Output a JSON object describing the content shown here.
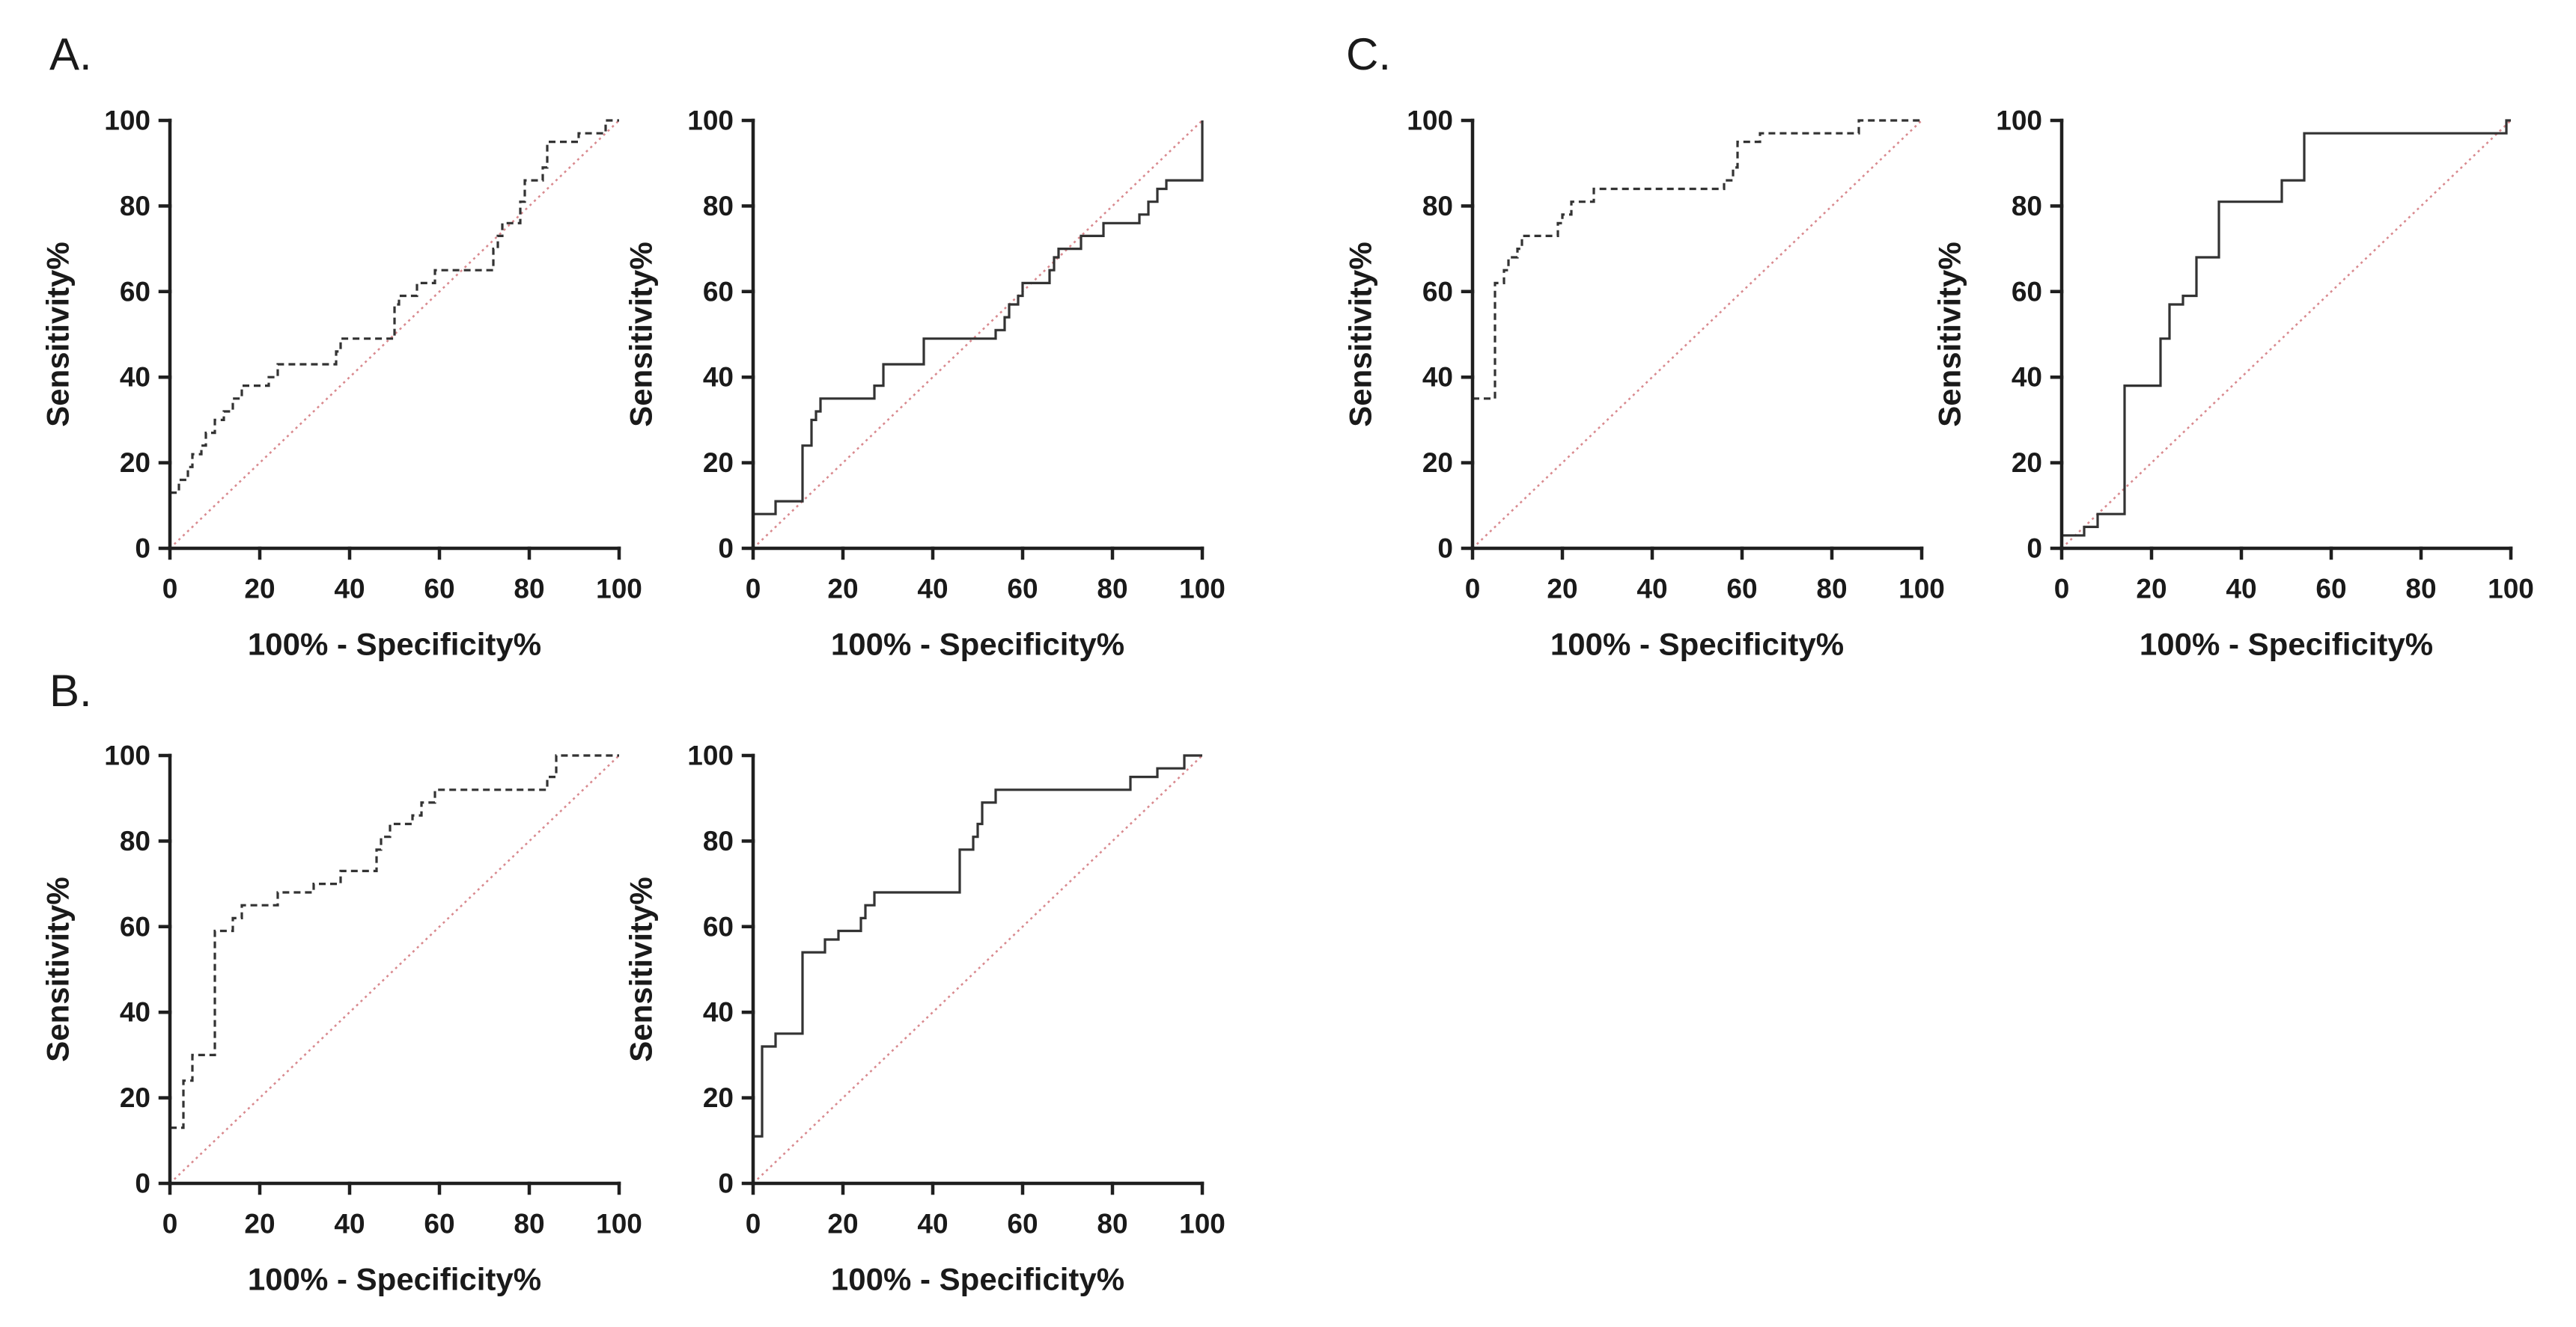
{
  "panels": [
    {
      "label": "A."
    },
    {
      "label": "B."
    },
    {
      "label": "C."
    }
  ],
  "chart_data": [
    {
      "type": "line",
      "xlabel": "100% - Specificity%",
      "ylabel": "Sensitivity%",
      "xlim": [
        0,
        100
      ],
      "ylim": [
        0,
        100
      ],
      "xticks": [
        0,
        20,
        40,
        60,
        80,
        100
      ],
      "yticks": [
        0,
        20,
        40,
        60,
        80,
        100
      ],
      "series": [
        {
          "color": "#333333",
          "dashed": true,
          "points": [
            [
              0,
              13
            ],
            [
              2,
              13
            ],
            [
              2,
              16
            ],
            [
              4,
              16
            ],
            [
              4,
              19
            ],
            [
              5,
              19
            ],
            [
              5,
              22
            ],
            [
              7,
              22
            ],
            [
              7,
              24
            ],
            [
              8,
              24
            ],
            [
              8,
              27
            ],
            [
              10,
              27
            ],
            [
              10,
              30
            ],
            [
              12,
              30
            ],
            [
              12,
              32
            ],
            [
              14,
              32
            ],
            [
              14,
              35
            ],
            [
              16,
              35
            ],
            [
              16,
              38
            ],
            [
              22,
              38
            ],
            [
              22,
              40
            ],
            [
              24,
              40
            ],
            [
              24,
              43
            ],
            [
              37,
              43
            ],
            [
              37,
              46
            ],
            [
              38,
              46
            ],
            [
              38,
              49
            ],
            [
              50,
              49
            ],
            [
              50,
              57
            ],
            [
              51,
              57
            ],
            [
              51,
              59
            ],
            [
              55,
              59
            ],
            [
              55,
              62
            ],
            [
              59,
              62
            ],
            [
              59,
              65
            ],
            [
              72,
              65
            ],
            [
              72,
              70
            ],
            [
              73,
              70
            ],
            [
              73,
              73
            ],
            [
              74,
              73
            ],
            [
              74,
              76
            ],
            [
              78,
              76
            ],
            [
              78,
              81
            ],
            [
              79,
              81
            ],
            [
              79,
              86
            ],
            [
              83,
              86
            ],
            [
              83,
              89
            ],
            [
              84,
              89
            ],
            [
              84,
              95
            ],
            [
              91,
              95
            ],
            [
              91,
              97
            ],
            [
              97,
              97
            ],
            [
              97,
              100
            ],
            [
              100,
              100
            ]
          ]
        }
      ],
      "reference": {
        "color": "#d98a8f",
        "points": [
          [
            0,
            0
          ],
          [
            100,
            100
          ]
        ]
      }
    },
    {
      "type": "line",
      "xlabel": "100% - Specificity%",
      "ylabel": "Sensitivity%",
      "xlim": [
        0,
        100
      ],
      "ylim": [
        0,
        100
      ],
      "xticks": [
        0,
        20,
        40,
        60,
        80,
        100
      ],
      "yticks": [
        0,
        20,
        40,
        60,
        80,
        100
      ],
      "series": [
        {
          "color": "#333333",
          "dashed": false,
          "points": [
            [
              0,
              8
            ],
            [
              5,
              8
            ],
            [
              5,
              11
            ],
            [
              11,
              11
            ],
            [
              11,
              24
            ],
            [
              13,
              24
            ],
            [
              13,
              30
            ],
            [
              14,
              30
            ],
            [
              14,
              32
            ],
            [
              15,
              32
            ],
            [
              15,
              35
            ],
            [
              27,
              35
            ],
            [
              27,
              38
            ],
            [
              29,
              38
            ],
            [
              29,
              43
            ],
            [
              38,
              43
            ],
            [
              38,
              49
            ],
            [
              54,
              49
            ],
            [
              54,
              51
            ],
            [
              56,
              51
            ],
            [
              56,
              54
            ],
            [
              57,
              54
            ],
            [
              57,
              57
            ],
            [
              59,
              57
            ],
            [
              59,
              59
            ],
            [
              60,
              59
            ],
            [
              60,
              62
            ],
            [
              66,
              62
            ],
            [
              66,
              65
            ],
            [
              67,
              65
            ],
            [
              67,
              68
            ],
            [
              68,
              68
            ],
            [
              68,
              70
            ],
            [
              73,
              70
            ],
            [
              73,
              73
            ],
            [
              78,
              73
            ],
            [
              78,
              76
            ],
            [
              86,
              76
            ],
            [
              86,
              78
            ],
            [
              88,
              78
            ],
            [
              88,
              81
            ],
            [
              90,
              81
            ],
            [
              90,
              84
            ],
            [
              92,
              84
            ],
            [
              92,
              86
            ],
            [
              100,
              86
            ],
            [
              100,
              100
            ]
          ]
        }
      ],
      "reference": {
        "color": "#d98a8f",
        "points": [
          [
            0,
            0
          ],
          [
            100,
            100
          ]
        ]
      }
    },
    {
      "type": "line",
      "xlabel": "100% - Specificity%",
      "ylabel": "Sensitivity%",
      "xlim": [
        0,
        100
      ],
      "ylim": [
        0,
        100
      ],
      "xticks": [
        0,
        20,
        40,
        60,
        80,
        100
      ],
      "yticks": [
        0,
        20,
        40,
        60,
        80,
        100
      ],
      "series": [
        {
          "color": "#333333",
          "dashed": true,
          "points": [
            [
              0,
              13
            ],
            [
              3,
              13
            ],
            [
              3,
              24
            ],
            [
              5,
              24
            ],
            [
              5,
              30
            ],
            [
              10,
              30
            ],
            [
              10,
              59
            ],
            [
              14,
              59
            ],
            [
              14,
              62
            ],
            [
              16,
              62
            ],
            [
              16,
              65
            ],
            [
              24,
              65
            ],
            [
              24,
              68
            ],
            [
              32,
              68
            ],
            [
              32,
              70
            ],
            [
              38,
              70
            ],
            [
              38,
              73
            ],
            [
              46,
              73
            ],
            [
              46,
              78
            ],
            [
              47,
              78
            ],
            [
              47,
              81
            ],
            [
              49,
              81
            ],
            [
              49,
              84
            ],
            [
              54,
              84
            ],
            [
              54,
              86
            ],
            [
              56,
              86
            ],
            [
              56,
              89
            ],
            [
              59,
              89
            ],
            [
              59,
              92
            ],
            [
              84,
              92
            ],
            [
              84,
              95
            ],
            [
              86,
              95
            ],
            [
              86,
              100
            ],
            [
              100,
              100
            ]
          ]
        }
      ],
      "reference": {
        "color": "#d98a8f",
        "points": [
          [
            0,
            0
          ],
          [
            100,
            100
          ]
        ]
      }
    },
    {
      "type": "line",
      "xlabel": "100% - Specificity%",
      "ylabel": "Sensitivity%",
      "xlim": [
        0,
        100
      ],
      "ylim": [
        0,
        100
      ],
      "xticks": [
        0,
        20,
        40,
        60,
        80,
        100
      ],
      "yticks": [
        0,
        20,
        40,
        60,
        80,
        100
      ],
      "series": [
        {
          "color": "#333333",
          "dashed": false,
          "points": [
            [
              0,
              11
            ],
            [
              2,
              11
            ],
            [
              2,
              32
            ],
            [
              5,
              32
            ],
            [
              5,
              35
            ],
            [
              11,
              35
            ],
            [
              11,
              54
            ],
            [
              16,
              54
            ],
            [
              16,
              57
            ],
            [
              19,
              57
            ],
            [
              19,
              59
            ],
            [
              24,
              59
            ],
            [
              24,
              62
            ],
            [
              25,
              62
            ],
            [
              25,
              65
            ],
            [
              27,
              65
            ],
            [
              27,
              68
            ],
            [
              46,
              68
            ],
            [
              46,
              78
            ],
            [
              49,
              78
            ],
            [
              49,
              81
            ],
            [
              50,
              81
            ],
            [
              50,
              84
            ],
            [
              51,
              84
            ],
            [
              51,
              89
            ],
            [
              54,
              89
            ],
            [
              54,
              92
            ],
            [
              84,
              92
            ],
            [
              84,
              95
            ],
            [
              90,
              95
            ],
            [
              90,
              97
            ],
            [
              96,
              97
            ],
            [
              96,
              100
            ],
            [
              100,
              100
            ]
          ]
        }
      ],
      "reference": {
        "color": "#d98a8f",
        "points": [
          [
            0,
            0
          ],
          [
            100,
            100
          ]
        ]
      }
    },
    {
      "type": "line",
      "xlabel": "100% - Specificity%",
      "ylabel": "Sensitivity%",
      "xlim": [
        0,
        100
      ],
      "ylim": [
        0,
        100
      ],
      "xticks": [
        0,
        20,
        40,
        60,
        80,
        100
      ],
      "yticks": [
        0,
        20,
        40,
        60,
        80,
        100
      ],
      "series": [
        {
          "color": "#333333",
          "dashed": true,
          "points": [
            [
              0,
              35
            ],
            [
              5,
              35
            ],
            [
              5,
              62
            ],
            [
              7,
              62
            ],
            [
              7,
              65
            ],
            [
              8,
              65
            ],
            [
              8,
              68
            ],
            [
              10,
              68
            ],
            [
              10,
              70
            ],
            [
              11,
              70
            ],
            [
              11,
              73
            ],
            [
              19,
              73
            ],
            [
              19,
              76
            ],
            [
              20,
              76
            ],
            [
              20,
              78
            ],
            [
              22,
              78
            ],
            [
              22,
              81
            ],
            [
              27,
              81
            ],
            [
              27,
              84
            ],
            [
              56,
              84
            ],
            [
              56,
              86
            ],
            [
              58,
              86
            ],
            [
              58,
              89
            ],
            [
              59,
              89
            ],
            [
              59,
              95
            ],
            [
              64,
              95
            ],
            [
              64,
              97
            ],
            [
              86,
              97
            ],
            [
              86,
              100
            ],
            [
              100,
              100
            ]
          ]
        }
      ],
      "reference": {
        "color": "#d98a8f",
        "points": [
          [
            0,
            0
          ],
          [
            100,
            100
          ]
        ]
      }
    },
    {
      "type": "line",
      "xlabel": "100% - Specificity%",
      "ylabel": "Sensitivity%",
      "xlim": [
        0,
        100
      ],
      "ylim": [
        0,
        100
      ],
      "xticks": [
        0,
        20,
        40,
        60,
        80,
        100
      ],
      "yticks": [
        0,
        20,
        40,
        60,
        80,
        100
      ],
      "series": [
        {
          "color": "#333333",
          "dashed": false,
          "points": [
            [
              0,
              3
            ],
            [
              5,
              3
            ],
            [
              5,
              5
            ],
            [
              8,
              5
            ],
            [
              8,
              8
            ],
            [
              14,
              8
            ],
            [
              14,
              38
            ],
            [
              22,
              38
            ],
            [
              22,
              49
            ],
            [
              24,
              49
            ],
            [
              24,
              57
            ],
            [
              27,
              57
            ],
            [
              27,
              59
            ],
            [
              30,
              59
            ],
            [
              30,
              68
            ],
            [
              35,
              68
            ],
            [
              35,
              81
            ],
            [
              49,
              81
            ],
            [
              49,
              86
            ],
            [
              54,
              86
            ],
            [
              54,
              97
            ],
            [
              99,
              97
            ],
            [
              99,
              100
            ],
            [
              100,
              100
            ]
          ]
        }
      ],
      "reference": {
        "color": "#d98a8f",
        "points": [
          [
            0,
            0
          ],
          [
            100,
            100
          ]
        ]
      }
    }
  ]
}
